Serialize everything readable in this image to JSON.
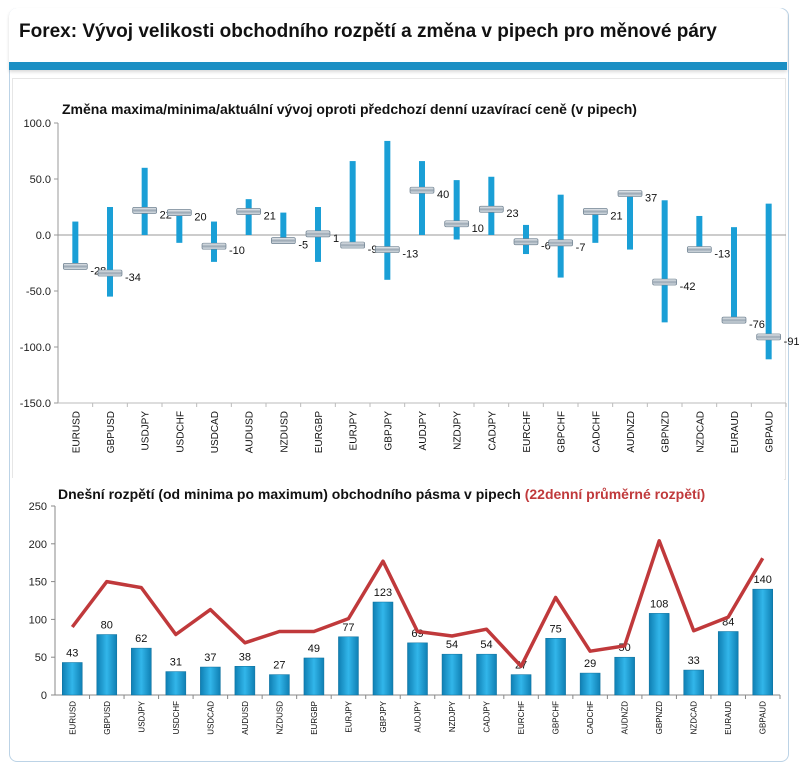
{
  "header": {
    "title": "Forex: Vývoj velikosti obchodního rozpětí a změna v pipech pro měnové páry"
  },
  "colors": {
    "accent": "#1b8fc4",
    "bar": "#1a9fd6",
    "line": "#c0393b"
  },
  "chart_data": [
    {
      "type": "bar",
      "title": "Změna maxima/minima/aktuální vývoj oproti předchozí denní uzavírací ceně (v pipech)",
      "ylim": [
        -150,
        100
      ],
      "yticks": [
        100,
        50,
        0,
        -50,
        -100,
        -150
      ],
      "ytick_labels": [
        "100.0",
        "50.0",
        "0.0",
        "-50.0",
        "-100.0",
        "-150.0"
      ],
      "grid": false,
      "categories": [
        "EURUSD",
        "GBPUSD",
        "USDJPY",
        "USDCHF",
        "USDCAD",
        "AUDUSD",
        "NZDUSD",
        "EURGBP",
        "EURJPY",
        "GBPJPY",
        "AUDJPY",
        "NZDJPY",
        "CADJPY",
        "EURCHF",
        "GBPCHF",
        "CADCHF",
        "AUDNZD",
        "GBPNZD",
        "NZDCAD",
        "EURAUD",
        "GBPAUD"
      ],
      "series": [
        {
          "values_high": [
            12,
            25,
            60,
            22,
            12,
            32,
            20,
            25,
            66,
            84,
            66,
            49,
            52,
            9,
            36,
            23,
            37,
            31,
            17,
            7,
            28
          ]
        },
        {
          "values_low": [
            -28,
            -55,
            0,
            -7,
            -24,
            0,
            -5,
            -24,
            -9,
            -40,
            0,
            -4,
            0,
            -17,
            -38,
            -7,
            -13,
            -78,
            -14,
            -76,
            -111
          ]
        },
        {
          "values_current": [
            -28,
            -34,
            22,
            20,
            -10,
            21,
            -5,
            1,
            -9,
            -13,
            40,
            10,
            23,
            -6,
            -7,
            21,
            37,
            -42,
            -13,
            -76,
            -91
          ]
        }
      ],
      "data_labels": [
        "-28",
        "-34",
        "22",
        "20",
        "-10",
        "21",
        "-5",
        "1",
        "-9",
        "-13",
        "40",
        "10",
        "23",
        "-6",
        "-7",
        "21",
        "37",
        "-42",
        "-13",
        "-76",
        "-91"
      ]
    },
    {
      "type": "bar",
      "title": "Dnešní rozpětí (od minima po maximum) obchodního pásma v pipech",
      "title_accent": "(22denní průměrné rozpětí)",
      "ylim": [
        0,
        250
      ],
      "yticks": [
        250,
        200,
        150,
        100,
        50,
        0
      ],
      "ytick_labels": [
        "250",
        "200",
        "150",
        "100",
        "50",
        "0"
      ],
      "grid": false,
      "categories": [
        "EURUSD",
        "GBPUSD",
        "USDJPY",
        "USDCHF",
        "USDCAD",
        "AUDUSD",
        "NZDUSD",
        "EURGBP",
        "EURJPY",
        "GBPJPY",
        "AUDJPY",
        "NZDJPY",
        "CADJPY",
        "EURCHF",
        "GBPCHF",
        "CADCHF",
        "AUDNZD",
        "GBPNZD",
        "NZDCAD",
        "EURAUD",
        "GBPAUD"
      ],
      "series": [
        {
          "type": "bar",
          "values": [
            43,
            80,
            62,
            31,
            37,
            38,
            27,
            49,
            77,
            123,
            69,
            54,
            54,
            27,
            75,
            29,
            50,
            108,
            33,
            84,
            140
          ]
        },
        {
          "type": "line",
          "values": [
            90,
            150,
            142,
            80,
            113,
            69,
            84,
            84,
            101,
            177,
            84,
            78,
            87,
            38,
            129,
            58,
            65,
            204,
            85,
            103,
            181
          ]
        }
      ],
      "data_labels": [
        "43",
        "80",
        "62",
        "31",
        "37",
        "38",
        "27",
        "49",
        "77",
        "123",
        "69",
        "54",
        "54",
        "27",
        "75",
        "29",
        "50",
        "108",
        "33",
        "84",
        "140"
      ]
    }
  ]
}
